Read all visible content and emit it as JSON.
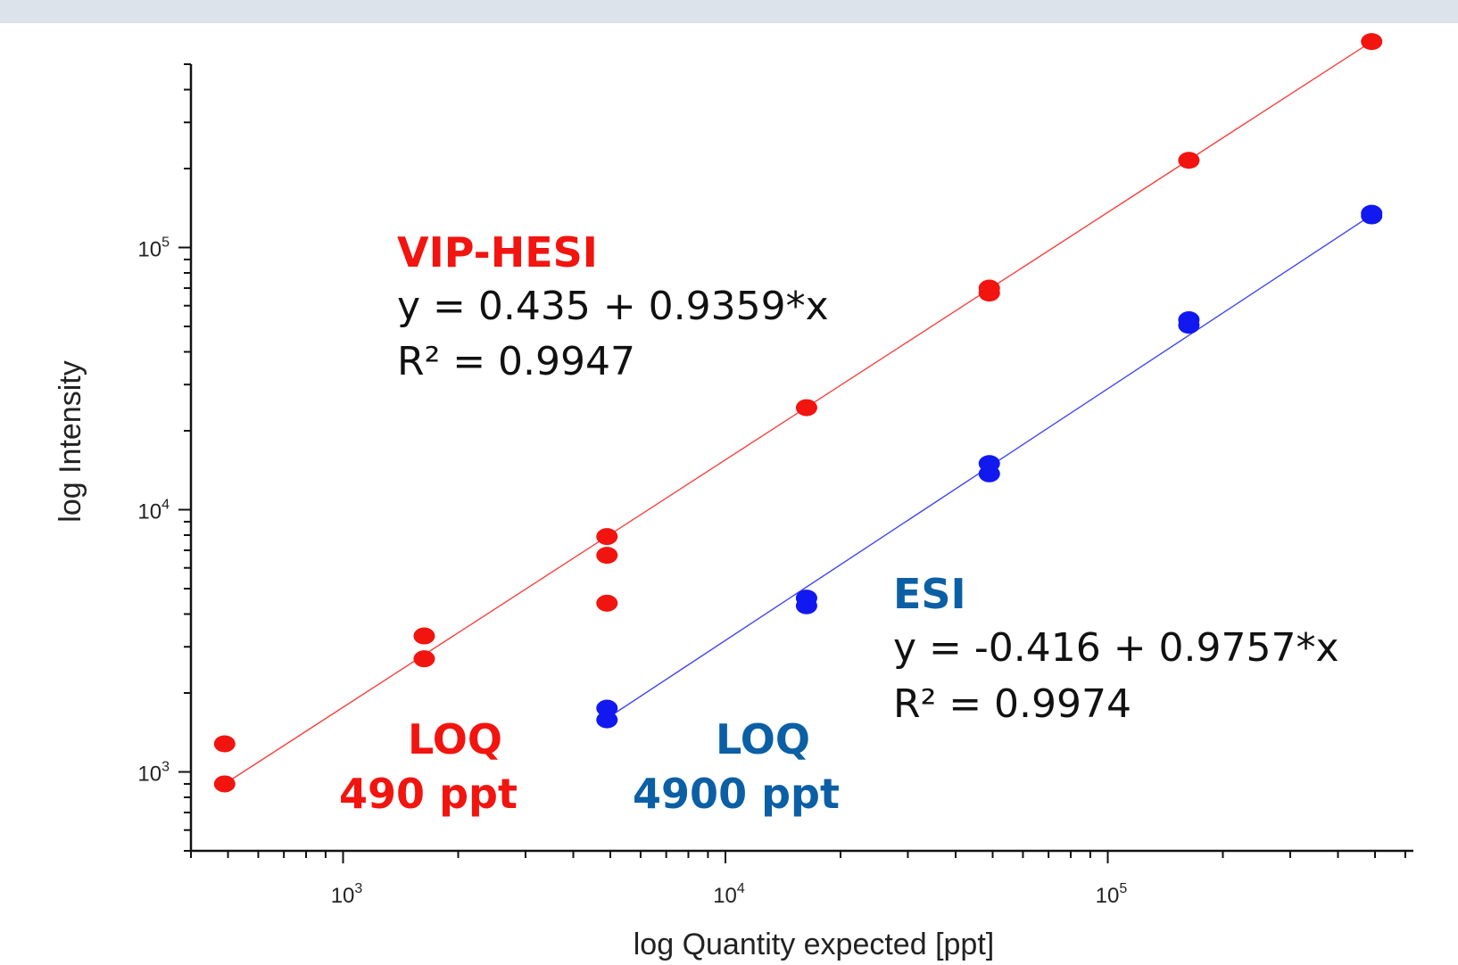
{
  "colors": {
    "vip_hesi": "#f2140f",
    "esi_points": "#1218f0",
    "esi_text": "#0b5fa5",
    "axis": "#111111"
  },
  "chart_data": {
    "type": "scatter",
    "xlabel": "log Quantity expected [ppt]",
    "ylabel": "log Intensity",
    "xscale": "log",
    "yscale": "log",
    "xlim": [
      400,
      630000
    ],
    "ylim": [
      500,
      500000
    ],
    "x_ticks": [
      1000,
      10000,
      100000
    ],
    "y_ticks": [
      1000,
      10000,
      100000
    ],
    "grid": false,
    "series": [
      {
        "name": "VIP-HESI",
        "color": "#f2140f",
        "points": [
          [
            490,
            1280
          ],
          [
            490,
            900
          ],
          [
            1630,
            3300
          ],
          [
            1630,
            2700
          ],
          [
            4900,
            7900
          ],
          [
            4900,
            6700
          ],
          [
            4900,
            4400
          ],
          [
            16300,
            24500
          ],
          [
            49000,
            70000
          ],
          [
            49000,
            67000
          ],
          [
            163000,
            215000
          ],
          [
            490000,
            610000
          ]
        ],
        "fit": {
          "x": [
            490,
            490000
          ],
          "y": [
            900,
            610000
          ]
        }
      },
      {
        "name": "ESI",
        "color": "#1218f0",
        "points": [
          [
            4900,
            1750
          ],
          [
            4900,
            1580
          ],
          [
            16300,
            4600
          ],
          [
            16300,
            4300
          ],
          [
            49000,
            15000
          ],
          [
            49000,
            13700
          ],
          [
            163000,
            53000
          ],
          [
            163000,
            50500
          ],
          [
            490000,
            135000
          ],
          [
            490000,
            132000
          ]
        ],
        "fit": {
          "x": [
            4900,
            490000
          ],
          "y": [
            1600,
            133000
          ]
        }
      }
    ],
    "annotations": {
      "vip_title": "VIP-HESI",
      "vip_eq": "y = 0.435 + 0.9359*x",
      "vip_r2": "R² = 0.9947",
      "esi_title": "ESI",
      "esi_eq": "y = -0.416 + 0.9757*x",
      "esi_r2": "R² = 0.9974",
      "loq_vip_label": "LOQ",
      "loq_vip_value": "490 ppt",
      "loq_esi_label": "LOQ",
      "loq_esi_value": "4900 ppt"
    }
  }
}
